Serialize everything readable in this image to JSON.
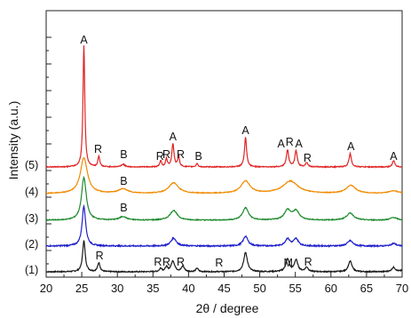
{
  "chart_data": {
    "type": "line",
    "xlabel": "2θ / degree",
    "ylabel": "Intensity (a.u.)",
    "xlim": [
      20,
      70
    ],
    "x_ticks": [
      20,
      25,
      30,
      35,
      40,
      45,
      50,
      55,
      60,
      65,
      70
    ],
    "grid": false,
    "legend": "none",
    "series": [
      {
        "name": "(1)",
        "color": "#1a1a1a",
        "baseline": 0,
        "noise": 0.6,
        "peaks": [
          {
            "x": 25.3,
            "h": 35,
            "w": 0.22
          },
          {
            "x": 27.4,
            "h": 10,
            "w": 0.2
          },
          {
            "x": 36.1,
            "h": 4,
            "w": 0.2
          },
          {
            "x": 36.9,
            "h": 5,
            "w": 0.2
          },
          {
            "x": 37.8,
            "h": 12,
            "w": 0.3
          },
          {
            "x": 39.2,
            "h": 6,
            "w": 0.25
          },
          {
            "x": 41.2,
            "h": 4,
            "w": 0.2
          },
          {
            "x": 48.0,
            "h": 22,
            "w": 0.3
          },
          {
            "x": 53.9,
            "h": 14,
            "w": 0.3
          },
          {
            "x": 55.1,
            "h": 13,
            "w": 0.3
          },
          {
            "x": 56.6,
            "h": 5,
            "w": 0.25
          },
          {
            "x": 62.7,
            "h": 12,
            "w": 0.3
          },
          {
            "x": 68.8,
            "h": 5,
            "w": 0.3
          },
          {
            "x": 70.3,
            "h": 4,
            "w": 0.3
          }
        ]
      },
      {
        "name": "(2)",
        "color": "#1f1fcc",
        "baseline": 29,
        "noise": 0.7,
        "peaks": [
          {
            "x": 25.3,
            "h": 45,
            "w": 0.3
          },
          {
            "x": 37.9,
            "h": 9,
            "w": 0.45
          },
          {
            "x": 48.0,
            "h": 11,
            "w": 0.4
          },
          {
            "x": 53.9,
            "h": 8,
            "w": 0.4
          },
          {
            "x": 55.1,
            "h": 8,
            "w": 0.4
          },
          {
            "x": 62.7,
            "h": 6,
            "w": 0.45
          },
          {
            "x": 68.8,
            "h": 3,
            "w": 0.4
          }
        ]
      },
      {
        "name": "(3)",
        "color": "#1e8a2e",
        "baseline": 58,
        "noise": 0.5,
        "peaks": [
          {
            "x": 25.3,
            "h": 48,
            "w": 0.4
          },
          {
            "x": 30.8,
            "h": 4,
            "w": 0.6
          },
          {
            "x": 37.9,
            "h": 11,
            "w": 0.6
          },
          {
            "x": 48.0,
            "h": 14,
            "w": 0.5
          },
          {
            "x": 53.9,
            "h": 11,
            "w": 0.55
          },
          {
            "x": 55.1,
            "h": 10,
            "w": 0.55
          },
          {
            "x": 62.7,
            "h": 8,
            "w": 0.6
          },
          {
            "x": 68.8,
            "h": 3,
            "w": 0.6
          }
        ]
      },
      {
        "name": "(4)",
        "color": "#f08a00",
        "baseline": 88,
        "noise": 0.4,
        "peaks": [
          {
            "x": 25.3,
            "h": 40,
            "w": 0.6
          },
          {
            "x": 30.8,
            "h": 5,
            "w": 0.8
          },
          {
            "x": 37.9,
            "h": 12,
            "w": 0.8
          },
          {
            "x": 48.0,
            "h": 14,
            "w": 0.75
          },
          {
            "x": 54.3,
            "h": 14,
            "w": 1.3
          },
          {
            "x": 62.8,
            "h": 9,
            "w": 0.8
          },
          {
            "x": 68.8,
            "h": 3,
            "w": 0.8
          }
        ]
      },
      {
        "name": "(5)",
        "color": "#e02424",
        "baseline": 118,
        "noise": 0.5,
        "peaks": [
          {
            "x": 25.3,
            "h": 137,
            "w": 0.15
          },
          {
            "x": 27.4,
            "h": 12,
            "w": 0.15
          },
          {
            "x": 30.8,
            "h": 3,
            "w": 0.3
          },
          {
            "x": 36.1,
            "h": 7,
            "w": 0.15
          },
          {
            "x": 36.9,
            "h": 9,
            "w": 0.15
          },
          {
            "x": 37.8,
            "h": 26,
            "w": 0.18
          },
          {
            "x": 38.6,
            "h": 12,
            "w": 0.15
          },
          {
            "x": 41.2,
            "h": 4,
            "w": 0.15
          },
          {
            "x": 48.0,
            "h": 33,
            "w": 0.18
          },
          {
            "x": 53.9,
            "h": 19,
            "w": 0.2
          },
          {
            "x": 55.1,
            "h": 18,
            "w": 0.2
          },
          {
            "x": 56.6,
            "h": 5,
            "w": 0.2
          },
          {
            "x": 62.7,
            "h": 15,
            "w": 0.2
          },
          {
            "x": 68.8,
            "h": 7,
            "w": 0.2
          }
        ]
      }
    ],
    "peak_labels": [
      {
        "text": "A",
        "x": 25.3,
        "y": 257
      },
      {
        "text": "R",
        "x": 27.3,
        "y": 134
      },
      {
        "text": "B",
        "x": 30.9,
        "y": 128
      },
      {
        "text": "R",
        "x": 36.0,
        "y": 126
      },
      {
        "text": "R",
        "x": 36.9,
        "y": 128
      },
      {
        "text": "A",
        "x": 37.8,
        "y": 148
      },
      {
        "text": "R",
        "x": 38.9,
        "y": 128
      },
      {
        "text": "B",
        "x": 41.4,
        "y": 126
      },
      {
        "text": "A",
        "x": 48.0,
        "y": 155
      },
      {
        "text": "A",
        "x": 53.0,
        "y": 140
      },
      {
        "text": "R",
        "x": 54.2,
        "y": 142
      },
      {
        "text": "A",
        "x": 55.5,
        "y": 140
      },
      {
        "text": "R",
        "x": 56.7,
        "y": 124
      },
      {
        "text": "A",
        "x": 62.8,
        "y": 137
      },
      {
        "text": "A",
        "x": 68.8,
        "y": 126
      },
      {
        "text": "B",
        "x": 30.9,
        "y": 98
      },
      {
        "text": "B",
        "x": 30.9,
        "y": 68
      },
      {
        "text": "R",
        "x": 27.5,
        "y": 14
      },
      {
        "text": "R",
        "x": 35.7,
        "y": 7
      },
      {
        "text": "R",
        "x": 36.9,
        "y": 7
      },
      {
        "text": "R",
        "x": 38.9,
        "y": 7
      },
      {
        "text": "R",
        "x": 44.3,
        "y": 6
      },
      {
        "text": "M",
        "x": 54.0,
        "y": 6
      },
      {
        "text": "R",
        "x": 56.8,
        "y": 7
      }
    ]
  }
}
